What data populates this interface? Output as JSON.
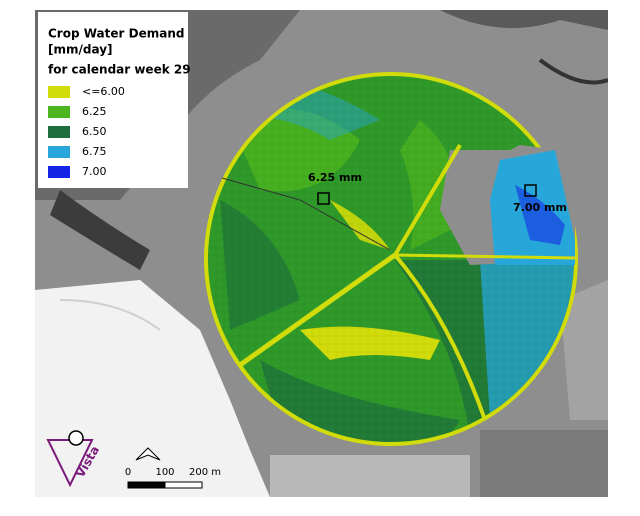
{
  "legend": {
    "title": [
      "Crop Water Demand",
      "[mm/day]",
      "for calendar week 29"
    ],
    "items": [
      {
        "label": "<=6.00",
        "color": "#d2dc0a"
      },
      {
        "label": "6.25",
        "color": "#4db51e"
      },
      {
        "label": "6.50",
        "color": "#1d6e3c"
      },
      {
        "label": "6.75",
        "color": "#27a7d9"
      },
      {
        "label": "7.00",
        "color": "#1422e6"
      }
    ]
  },
  "annotations": [
    "6.25 mm",
    "7.00 mm"
  ],
  "scale_bar": [
    "0",
    "100",
    "200 m"
  ],
  "logo": "Vista"
}
